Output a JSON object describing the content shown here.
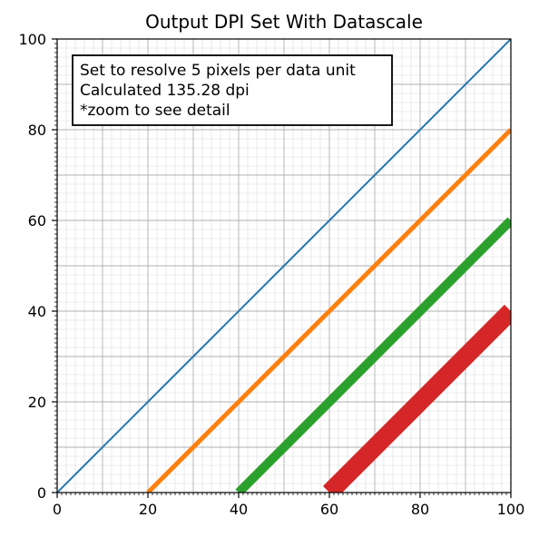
{
  "chart_data": {
    "type": "line",
    "title": "Output DPI Set With Datascale",
    "xlabel": "",
    "ylabel": "",
    "xlim": [
      0,
      100
    ],
    "ylim": [
      0,
      100
    ],
    "x_ticks": [
      0,
      20,
      40,
      60,
      80,
      100
    ],
    "y_ticks": [
      0,
      20,
      40,
      60,
      80,
      100
    ],
    "x_tick_labels": [
      "0",
      "20",
      "40",
      "60",
      "80",
      "100"
    ],
    "y_tick_labels": [
      "0",
      "20",
      "40",
      "60",
      "80",
      "100"
    ],
    "minor_tick_step": 1,
    "grid": true,
    "grid_major_step": 10,
    "grid_minor_step": 2,
    "annotation": {
      "lines": [
        "Set to resolve 5 pixels per data unit",
        "Calculated 135.28 dpi",
        "*zoom to see detail"
      ],
      "placement": "top-left"
    },
    "series": [
      {
        "x": [
          0,
          100
        ],
        "y": [
          0,
          100
        ],
        "color": "#1f77b4",
        "linewidth_data_units": 0.4
      },
      {
        "x": [
          20,
          100
        ],
        "y": [
          0,
          80
        ],
        "color": "#ff7f0e",
        "linewidth_data_units": 1
      },
      {
        "x": [
          40,
          100
        ],
        "y": [
          0,
          60
        ],
        "color": "#2ca02c",
        "linewidth_data_units": 2
      },
      {
        "x": [
          60,
          100
        ],
        "y": [
          0,
          40
        ],
        "color": "#d62728",
        "linewidth_data_units": 4
      }
    ]
  }
}
